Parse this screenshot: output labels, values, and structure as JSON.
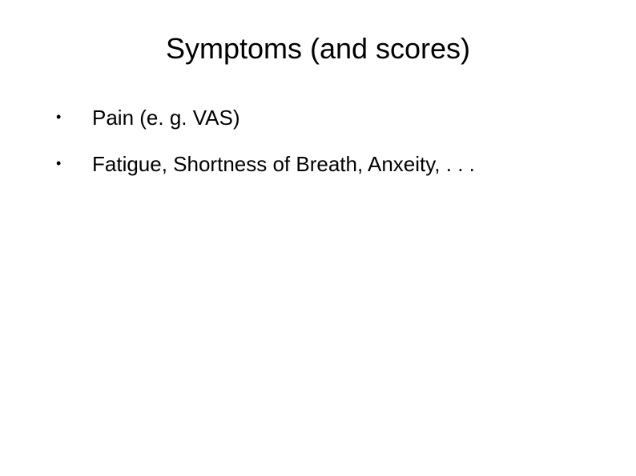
{
  "slide": {
    "title": "Symptoms (and scores)",
    "bullets": [
      {
        "marker": "•",
        "text": "Pain (e. g. VAS)"
      },
      {
        "marker": "•",
        "text": "Fatigue, Shortness of Breath, Anxeity, . . ."
      }
    ]
  },
  "style": {
    "background_color": "#ffffff",
    "text_color": "#000000",
    "title_fontsize": 36,
    "bullet_fontsize": 26,
    "marker_fontsize": 18
  }
}
